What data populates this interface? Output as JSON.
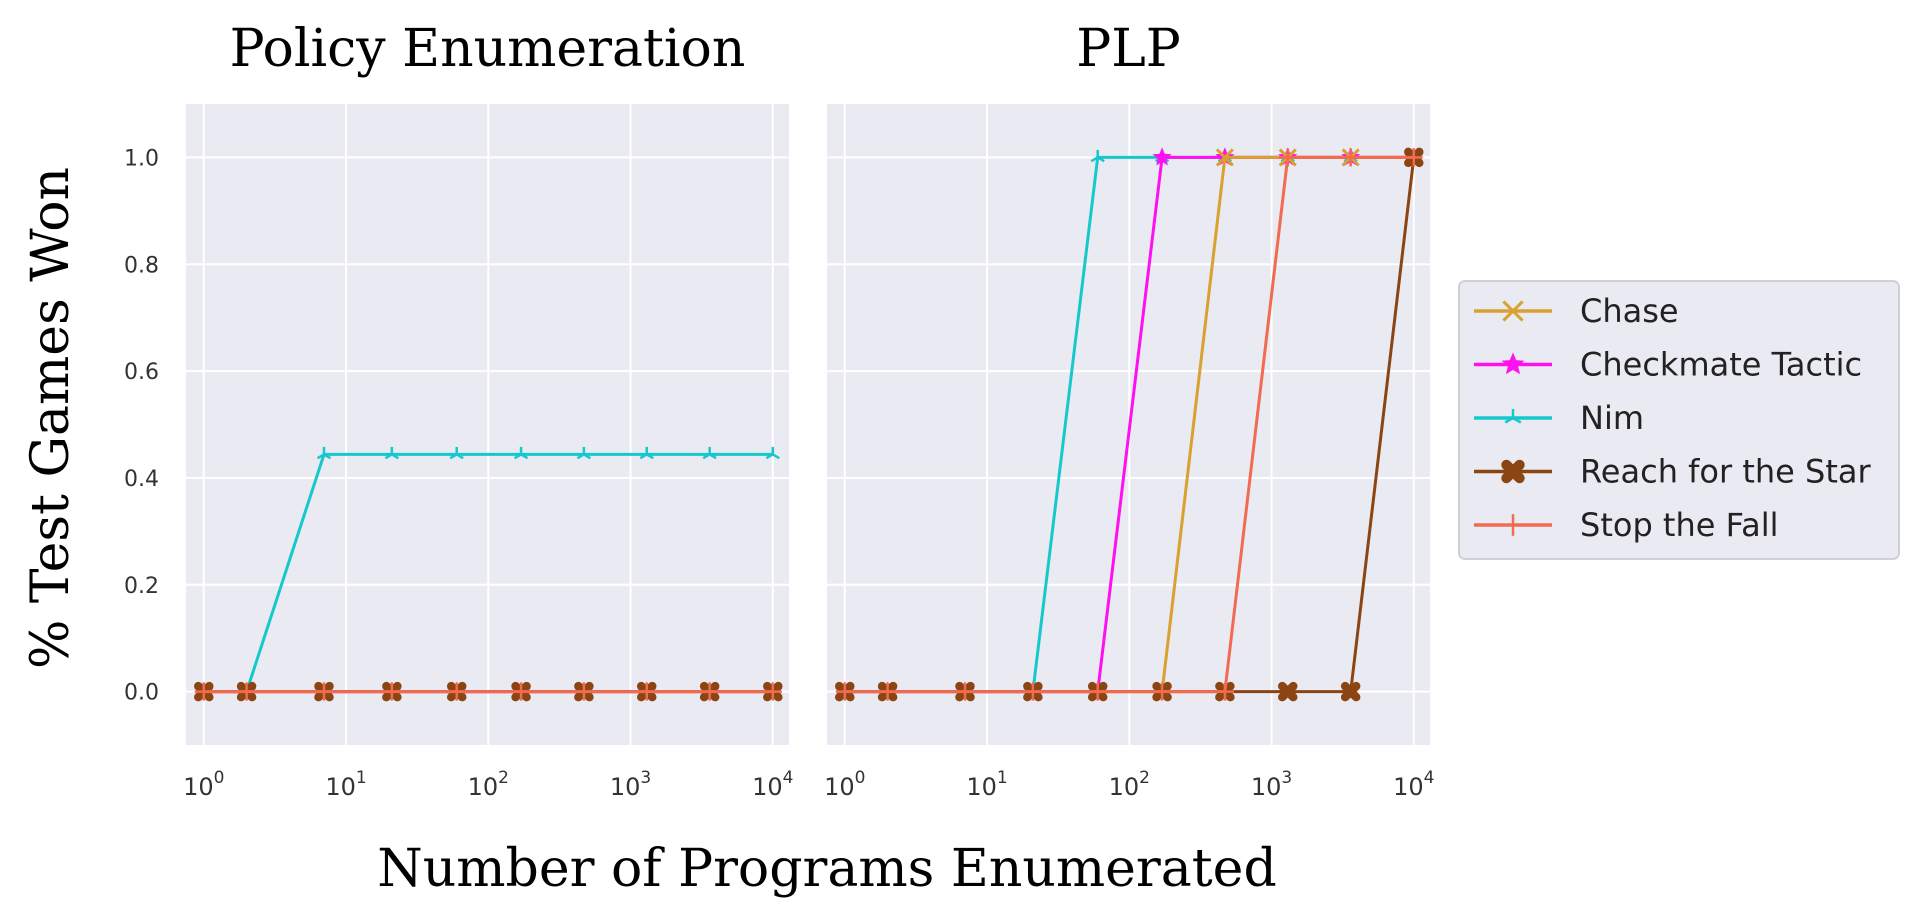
{
  "figure": {
    "ylabel": "% Test Games Won",
    "xlabel": "Number of Programs Enumerated"
  },
  "legend": {
    "placement": "right",
    "items": [
      {
        "name": "Chase",
        "color": "#DAA030",
        "marker": "x-icon"
      },
      {
        "name": "Checkmate Tactic",
        "color": "#FF10F0",
        "marker": "star-icon"
      },
      {
        "name": "Nim",
        "color": "#16C8CC",
        "marker": "tri-star-icon"
      },
      {
        "name": "Reach for the Star",
        "color": "#8B4513",
        "marker": "filled-x-icon"
      },
      {
        "name": "Stop the Fall",
        "color": "#F26A50",
        "marker": "plus-icon"
      }
    ]
  },
  "chart_data": [
    {
      "type": "line",
      "title": "Policy Enumeration",
      "x_scale": "log",
      "xlim": [
        0.75,
        13000
      ],
      "ylim": [
        -0.1,
        1.1
      ],
      "xticks": [
        {
          "value": 1,
          "exp": "0"
        },
        {
          "value": 10,
          "exp": "1"
        },
        {
          "value": 100,
          "exp": "2"
        },
        {
          "value": 1000,
          "exp": "3"
        },
        {
          "value": 10000,
          "exp": "4"
        }
      ],
      "yticks": [
        "0.0",
        "0.2",
        "0.4",
        "0.6",
        "0.8",
        "1.0"
      ],
      "grid": true,
      "x": [
        1,
        2,
        7,
        21,
        60,
        170,
        470,
        1300,
        3600,
        10000
      ],
      "series": [
        {
          "name": "Chase",
          "values": [
            0,
            0,
            0,
            0,
            0,
            0,
            0,
            0,
            0,
            0
          ]
        },
        {
          "name": "Checkmate Tactic",
          "values": [
            0,
            0,
            0,
            0,
            0,
            0,
            0,
            0,
            0,
            0
          ]
        },
        {
          "name": "Nim",
          "values": [
            0,
            0,
            0.444,
            0.444,
            0.444,
            0.444,
            0.444,
            0.444,
            0.444,
            0.444
          ]
        },
        {
          "name": "Reach for the Star",
          "values": [
            0,
            0,
            0,
            0,
            0,
            0,
            0,
            0,
            0,
            0
          ]
        },
        {
          "name": "Stop the Fall",
          "values": [
            0,
            0,
            0,
            0,
            0,
            0,
            0,
            0,
            0,
            0
          ]
        }
      ]
    },
    {
      "type": "line",
      "title": "PLP",
      "x_scale": "log",
      "xlim": [
        0.75,
        13000
      ],
      "ylim": [
        -0.1,
        1.1
      ],
      "xticks": [
        {
          "value": 1,
          "exp": "0"
        },
        {
          "value": 10,
          "exp": "1"
        },
        {
          "value": 100,
          "exp": "2"
        },
        {
          "value": 1000,
          "exp": "3"
        },
        {
          "value": 10000,
          "exp": "4"
        }
      ],
      "yticks": [],
      "grid": true,
      "x": [
        1,
        2,
        7,
        21,
        60,
        170,
        470,
        1300,
        3600,
        10000
      ],
      "series": [
        {
          "name": "Chase",
          "values": [
            0,
            0,
            0,
            0,
            0,
            0,
            1,
            1,
            1,
            1
          ]
        },
        {
          "name": "Checkmate Tactic",
          "values": [
            0,
            0,
            0,
            0,
            0,
            1,
            1,
            1,
            1,
            1
          ]
        },
        {
          "name": "Nim",
          "values": [
            0,
            0,
            0,
            0,
            1,
            1,
            1,
            1,
            1,
            1
          ]
        },
        {
          "name": "Reach for the Star",
          "values": [
            0,
            0,
            0,
            0,
            0,
            0,
            0,
            0,
            0,
            1
          ]
        },
        {
          "name": "Stop the Fall",
          "values": [
            0,
            0,
            0,
            0,
            0,
            0,
            0,
            1,
            1,
            1
          ]
        }
      ]
    }
  ]
}
